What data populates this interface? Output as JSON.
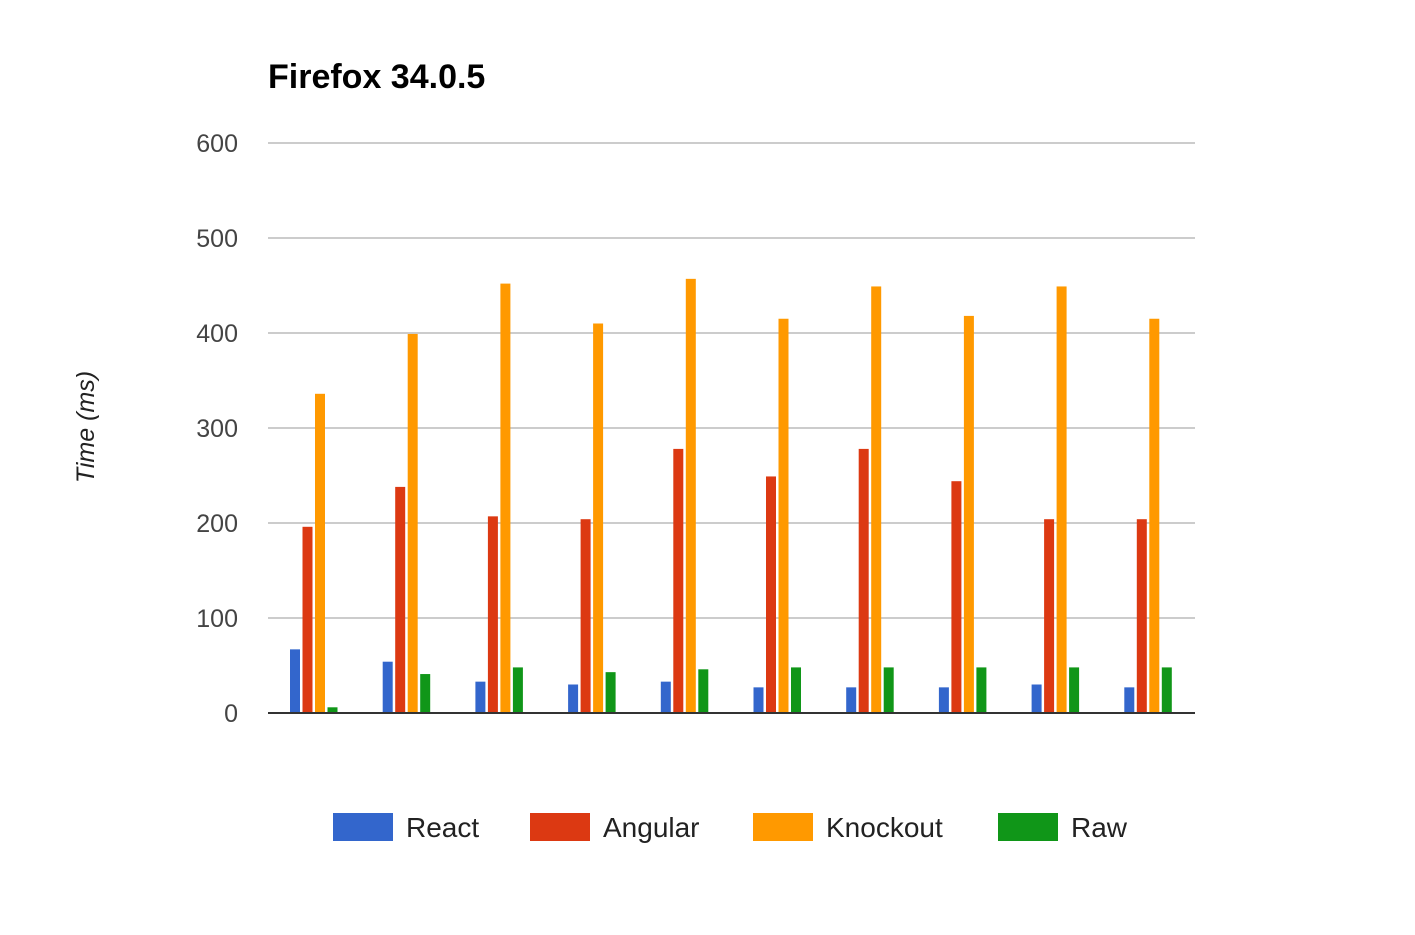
{
  "chart_data": {
    "type": "bar",
    "title": "Firefox 34.0.5",
    "xlabel": "",
    "ylabel": "Time (ms)",
    "ylim": [
      0,
      600
    ],
    "yticks": [
      0,
      100,
      200,
      300,
      400,
      500,
      600
    ],
    "grid": true,
    "legend_position": "bottom",
    "categories": [
      "",
      "",
      "",
      "",
      "",
      "",
      "",
      "",
      "",
      ""
    ],
    "series": [
      {
        "name": "React",
        "color": "#3366cc",
        "values": [
          67,
          54,
          33,
          30,
          33,
          27,
          27,
          27,
          30,
          27
        ]
      },
      {
        "name": "Angular",
        "color": "#dc3912",
        "values": [
          196,
          238,
          207,
          204,
          278,
          249,
          278,
          244,
          204,
          204
        ]
      },
      {
        "name": "Knockout",
        "color": "#ff9900",
        "values": [
          336,
          399,
          452,
          410,
          457,
          415,
          449,
          418,
          449,
          415
        ]
      },
      {
        "name": "Raw",
        "color": "#109618",
        "values": [
          6,
          41,
          48,
          43,
          46,
          48,
          48,
          48,
          48,
          48
        ]
      }
    ]
  }
}
